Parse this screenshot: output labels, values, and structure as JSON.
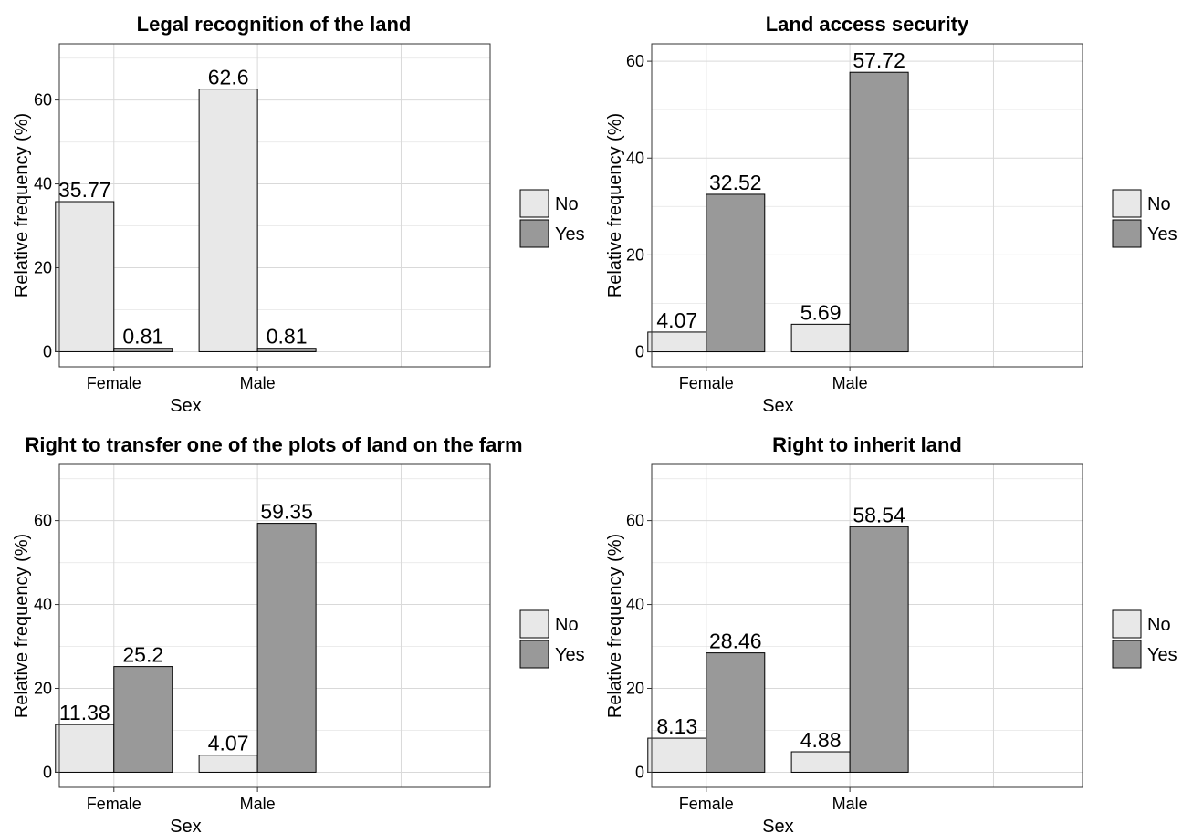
{
  "chart_data": [
    {
      "type": "bar",
      "title": "Legal recognition of the land",
      "xlabel": "Sex",
      "ylabel": "Relative frequency (%)",
      "categories": [
        "Female",
        "Male"
      ],
      "series": [
        {
          "name": "No",
          "values": [
            35.77,
            62.6
          ]
        },
        {
          "name": "Yes",
          "values": [
            0.81,
            0.81
          ]
        }
      ],
      "value_labels": [
        [
          "35.77",
          "62.6"
        ],
        [
          "0.81",
          "0.81"
        ]
      ],
      "yticks": [
        0,
        20,
        40,
        60
      ],
      "ylim": [
        -3.6,
        73.4
      ],
      "grid": true,
      "legend_position": "right"
    },
    {
      "type": "bar",
      "title": "Land access security",
      "xlabel": "Sex",
      "ylabel": "Relative frequency (%)",
      "categories": [
        "Female",
        "Male"
      ],
      "series": [
        {
          "name": "No",
          "values": [
            4.07,
            5.69
          ]
        },
        {
          "name": "Yes",
          "values": [
            32.52,
            57.72
          ]
        }
      ],
      "value_labels": [
        [
          "4.07",
          "5.69"
        ],
        [
          "32.52",
          "57.72"
        ]
      ],
      "yticks": [
        0,
        20,
        40,
        60
      ],
      "ylim": [
        -3.1,
        63.6
      ],
      "grid": true,
      "legend_position": "right"
    },
    {
      "type": "bar",
      "title": "Right to transfer one of the plots of land on the farm",
      "xlabel": "Sex",
      "ylabel": "Relative frequency (%)",
      "categories": [
        "Female",
        "Male"
      ],
      "series": [
        {
          "name": "No",
          "values": [
            11.38,
            4.07
          ]
        },
        {
          "name": "Yes",
          "values": [
            25.2,
            59.35
          ]
        }
      ],
      "value_labels": [
        [
          "11.38",
          "4.07"
        ],
        [
          "25.2",
          "59.35"
        ]
      ],
      "yticks": [
        0,
        20,
        40,
        60
      ],
      "ylim": [
        -3.6,
        73.4
      ],
      "grid": true,
      "legend_position": "right"
    },
    {
      "type": "bar",
      "title": "Right to inherit land",
      "xlabel": "Sex",
      "ylabel": "Relative frequency (%)",
      "categories": [
        "Female",
        "Male"
      ],
      "series": [
        {
          "name": "No",
          "values": [
            8.13,
            4.88
          ]
        },
        {
          "name": "Yes",
          "values": [
            28.46,
            58.54
          ]
        }
      ],
      "value_labels": [
        [
          "8.13",
          "4.88"
        ],
        [
          "28.46",
          "58.54"
        ]
      ],
      "yticks": [
        0,
        20,
        40,
        60
      ],
      "ylim": [
        -3.6,
        73.4
      ],
      "grid": true,
      "legend_position": "right"
    }
  ],
  "colors": {
    "no_fill": "#e8e8e8",
    "yes_fill": "#999999",
    "grid_major": "#d9d9d9",
    "grid_minor": "#ececec",
    "bar_stroke": "#000000"
  }
}
